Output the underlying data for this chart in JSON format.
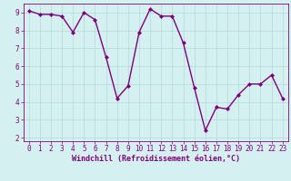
{
  "x": [
    0,
    1,
    2,
    3,
    4,
    5,
    6,
    7,
    8,
    9,
    10,
    11,
    12,
    13,
    14,
    15,
    16,
    17,
    18,
    19,
    20,
    21,
    22,
    23
  ],
  "y": [
    9.1,
    8.9,
    8.9,
    8.8,
    7.9,
    9.0,
    8.6,
    6.5,
    4.2,
    4.9,
    7.9,
    9.2,
    8.8,
    8.8,
    7.3,
    4.8,
    2.4,
    3.7,
    3.6,
    4.4,
    5.0,
    5.0,
    5.5,
    4.2
  ],
  "line_color": "#800080",
  "marker": "D",
  "marker_size": 2.0,
  "bg_color": "#d4f0f0",
  "grid_color": "#b0dada",
  "xlabel": "Windchill (Refroidissement éolien,°C)",
  "xlim": [
    -0.5,
    23.5
  ],
  "ylim": [
    1.8,
    9.5
  ],
  "yticks": [
    2,
    3,
    4,
    5,
    6,
    7,
    8,
    9
  ],
  "xticks": [
    0,
    1,
    2,
    3,
    4,
    5,
    6,
    7,
    8,
    9,
    10,
    11,
    12,
    13,
    14,
    15,
    16,
    17,
    18,
    19,
    20,
    21,
    22,
    23
  ],
  "xlabel_fontsize": 6.0,
  "tick_fontsize": 5.5,
  "line_width": 1.0,
  "axis_color": "#800080"
}
